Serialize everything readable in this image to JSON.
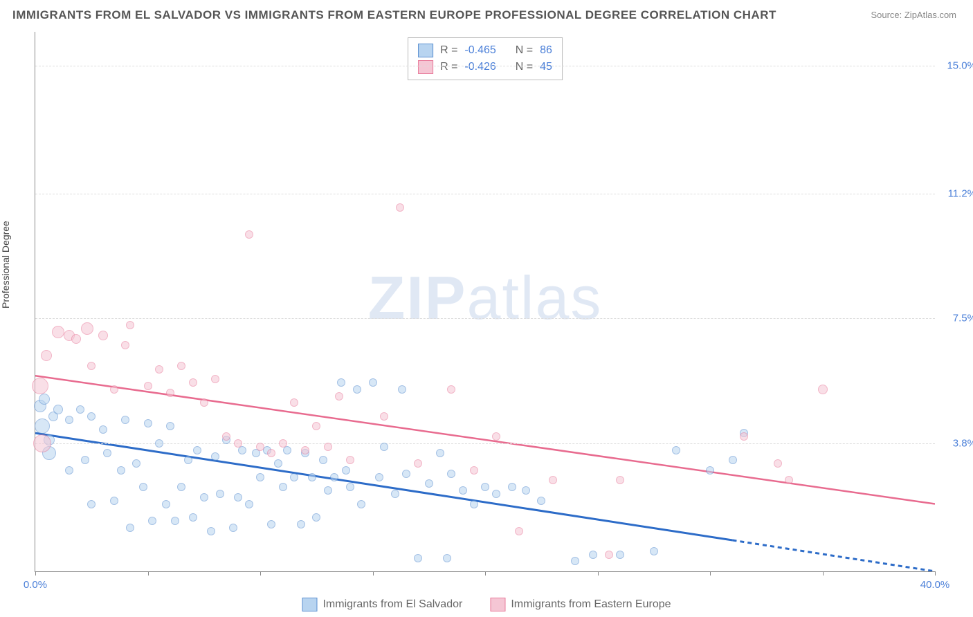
{
  "title": "IMMIGRANTS FROM EL SALVADOR VS IMMIGRANTS FROM EASTERN EUROPE PROFESSIONAL DEGREE CORRELATION CHART",
  "source": "Source: ZipAtlas.com",
  "ylabel": "Professional Degree",
  "watermark_bold": "ZIP",
  "watermark_rest": "atlas",
  "chart": {
    "type": "scatter",
    "xlim": [
      0,
      40
    ],
    "ylim": [
      0,
      16
    ],
    "xticks": [
      0,
      5,
      10,
      15,
      20,
      25,
      30,
      35,
      40
    ],
    "xtick_labels": {
      "0": "0.0%",
      "40": "40.0%"
    },
    "yticks": [
      3.8,
      7.5,
      11.2,
      15.0
    ],
    "ytick_labels": [
      "3.8%",
      "7.5%",
      "11.2%",
      "15.0%"
    ],
    "background_color": "#ffffff",
    "grid_color": "#dddddd",
    "axis_color": "#888888",
    "label_color": "#4a7fd8"
  },
  "series": [
    {
      "name": "Immigrants from El Salvador",
      "fill": "#b8d4f0",
      "stroke": "#5a8fd0",
      "fill_opacity": 0.55,
      "R_label": "R =",
      "R": "-0.465",
      "N_label": "N =",
      "N": "86",
      "trend": {
        "x1": 0,
        "y1": 4.1,
        "x2": 40,
        "y2": 0.0,
        "solid_until_x": 31,
        "stroke": "#2d6cc8",
        "width": 3,
        "dash": "6,5"
      },
      "points": [
        [
          0.2,
          4.9,
          16
        ],
        [
          0.3,
          4.3,
          20
        ],
        [
          0.4,
          5.1,
          14
        ],
        [
          0.6,
          3.9,
          14
        ],
        [
          0.8,
          4.6,
          12
        ],
        [
          0.6,
          3.5,
          18
        ],
        [
          1.0,
          4.8,
          12
        ],
        [
          1.5,
          4.5,
          10
        ],
        [
          1.5,
          3.0,
          10
        ],
        [
          2.0,
          4.8,
          10
        ],
        [
          2.2,
          3.3,
          10
        ],
        [
          2.5,
          4.6,
          10
        ],
        [
          2.5,
          2.0,
          10
        ],
        [
          3.0,
          4.2,
          10
        ],
        [
          3.2,
          3.5,
          10
        ],
        [
          3.5,
          2.1,
          10
        ],
        [
          3.8,
          3.0,
          10
        ],
        [
          4.0,
          4.5,
          10
        ],
        [
          4.2,
          1.3,
          10
        ],
        [
          4.5,
          3.2,
          10
        ],
        [
          4.8,
          2.5,
          10
        ],
        [
          5.0,
          4.4,
          10
        ],
        [
          5.2,
          1.5,
          10
        ],
        [
          5.5,
          3.8,
          10
        ],
        [
          5.8,
          2.0,
          10
        ],
        [
          6.0,
          4.3,
          10
        ],
        [
          6.2,
          1.5,
          10
        ],
        [
          6.5,
          2.5,
          10
        ],
        [
          6.8,
          3.3,
          10
        ],
        [
          7.0,
          1.6,
          10
        ],
        [
          7.2,
          3.6,
          10
        ],
        [
          7.5,
          2.2,
          10
        ],
        [
          7.8,
          1.2,
          10
        ],
        [
          8.0,
          3.4,
          10
        ],
        [
          8.2,
          2.3,
          10
        ],
        [
          8.5,
          3.9,
          10
        ],
        [
          8.8,
          1.3,
          10
        ],
        [
          9.0,
          2.2,
          10
        ],
        [
          9.2,
          3.6,
          10
        ],
        [
          9.5,
          2.0,
          10
        ],
        [
          9.8,
          3.5,
          10
        ],
        [
          10.0,
          2.8,
          10
        ],
        [
          10.3,
          3.6,
          10
        ],
        [
          10.5,
          1.4,
          10
        ],
        [
          10.8,
          3.2,
          10
        ],
        [
          11.0,
          2.5,
          10
        ],
        [
          11.2,
          3.6,
          10
        ],
        [
          11.5,
          2.8,
          10
        ],
        [
          11.8,
          1.4,
          10
        ],
        [
          12.0,
          3.5,
          10
        ],
        [
          12.3,
          2.8,
          10
        ],
        [
          12.5,
          1.6,
          10
        ],
        [
          12.8,
          3.3,
          10
        ],
        [
          13.0,
          2.4,
          10
        ],
        [
          13.3,
          2.8,
          10
        ],
        [
          13.6,
          5.6,
          10
        ],
        [
          13.8,
          3.0,
          10
        ],
        [
          14.0,
          2.5,
          10
        ],
        [
          14.3,
          5.4,
          10
        ],
        [
          14.5,
          2.0,
          10
        ],
        [
          15.0,
          5.6,
          10
        ],
        [
          15.3,
          2.8,
          10
        ],
        [
          15.5,
          3.7,
          10
        ],
        [
          16.0,
          2.3,
          10
        ],
        [
          16.3,
          5.4,
          10
        ],
        [
          16.5,
          2.9,
          10
        ],
        [
          17.0,
          0.4,
          10
        ],
        [
          17.5,
          2.6,
          10
        ],
        [
          18.0,
          3.5,
          10
        ],
        [
          18.3,
          0.4,
          10
        ],
        [
          18.5,
          2.9,
          10
        ],
        [
          19.0,
          2.4,
          10
        ],
        [
          19.5,
          2.0,
          10
        ],
        [
          20.0,
          2.5,
          10
        ],
        [
          20.5,
          2.3,
          10
        ],
        [
          21.2,
          2.5,
          10
        ],
        [
          21.8,
          2.4,
          10
        ],
        [
          22.5,
          2.1,
          10
        ],
        [
          24.0,
          0.3,
          10
        ],
        [
          24.8,
          0.5,
          10
        ],
        [
          26.0,
          0.5,
          10
        ],
        [
          27.5,
          0.6,
          10
        ],
        [
          28.5,
          3.6,
          10
        ],
        [
          30.0,
          3.0,
          10
        ],
        [
          31.0,
          3.3,
          10
        ],
        [
          31.5,
          4.1,
          10
        ]
      ]
    },
    {
      "name": "Immigrants from Eastern Europe",
      "fill": "#f5c6d4",
      "stroke": "#e87a9a",
      "fill_opacity": 0.55,
      "R_label": "R =",
      "R": "-0.426",
      "N_label": "N =",
      "N": "45",
      "trend": {
        "x1": 0,
        "y1": 5.8,
        "x2": 40,
        "y2": 2.0,
        "solid_until_x": 40,
        "stroke": "#e86b8f",
        "width": 2.5,
        "dash": ""
      },
      "points": [
        [
          0.2,
          5.5,
          22
        ],
        [
          0.3,
          3.8,
          24
        ],
        [
          0.5,
          6.4,
          14
        ],
        [
          1.0,
          7.1,
          16
        ],
        [
          1.5,
          7.0,
          14
        ],
        [
          1.8,
          6.9,
          12
        ],
        [
          2.3,
          7.2,
          16
        ],
        [
          2.5,
          6.1,
          10
        ],
        [
          3.0,
          7.0,
          12
        ],
        [
          3.5,
          5.4,
          10
        ],
        [
          4.0,
          6.7,
          10
        ],
        [
          4.2,
          7.3,
          10
        ],
        [
          5.0,
          5.5,
          10
        ],
        [
          5.5,
          6.0,
          10
        ],
        [
          6.0,
          5.3,
          10
        ],
        [
          6.5,
          6.1,
          10
        ],
        [
          7.0,
          5.6,
          10
        ],
        [
          7.5,
          5.0,
          10
        ],
        [
          8.0,
          5.7,
          10
        ],
        [
          8.5,
          4.0,
          10
        ],
        [
          9.0,
          3.8,
          10
        ],
        [
          9.5,
          10.0,
          10
        ],
        [
          10.0,
          3.7,
          10
        ],
        [
          10.5,
          3.5,
          10
        ],
        [
          11.0,
          3.8,
          10
        ],
        [
          11.5,
          5.0,
          10
        ],
        [
          12.0,
          3.6,
          10
        ],
        [
          12.5,
          4.3,
          10
        ],
        [
          13.0,
          3.7,
          10
        ],
        [
          13.5,
          5.2,
          10
        ],
        [
          14.0,
          3.3,
          10
        ],
        [
          15.5,
          4.6,
          10
        ],
        [
          16.2,
          10.8,
          10
        ],
        [
          17.0,
          3.2,
          10
        ],
        [
          18.5,
          5.4,
          10
        ],
        [
          19.5,
          3.0,
          10
        ],
        [
          20.5,
          4.0,
          10
        ],
        [
          21.5,
          1.2,
          10
        ],
        [
          23.0,
          2.7,
          10
        ],
        [
          25.5,
          0.5,
          10
        ],
        [
          26.0,
          2.7,
          10
        ],
        [
          31.5,
          4.0,
          10
        ],
        [
          33.0,
          3.2,
          10
        ],
        [
          35.0,
          5.4,
          12
        ],
        [
          33.5,
          2.7,
          10
        ]
      ]
    }
  ]
}
